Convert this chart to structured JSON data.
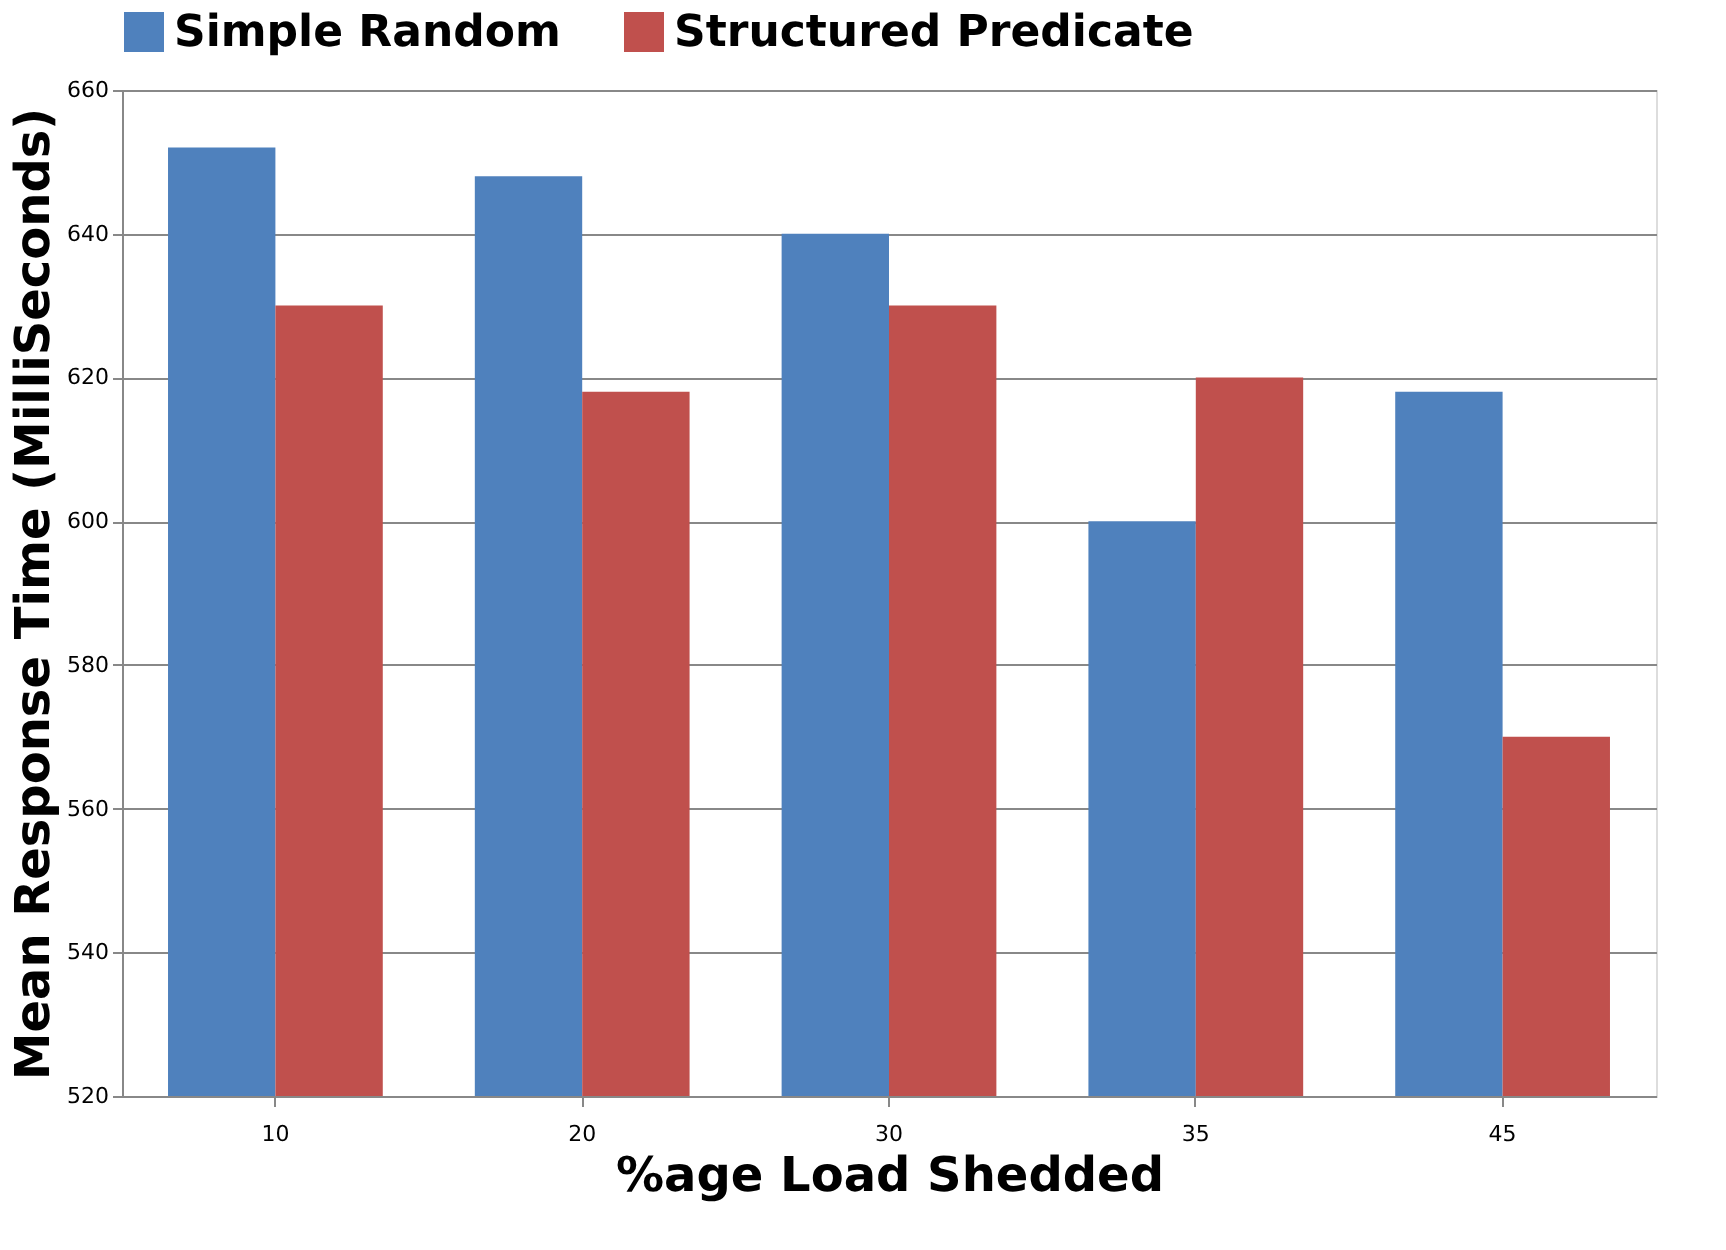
{
  "chart_data": {
    "type": "bar",
    "categories": [
      "10",
      "20",
      "30",
      "35",
      "45"
    ],
    "series": [
      {
        "name": "Simple Random",
        "color": "#4f81bd",
        "values": [
          652,
          648,
          640,
          600,
          618
        ]
      },
      {
        "name": "Structured Predicate",
        "color": "#c0504d",
        "values": [
          630,
          618,
          630,
          620,
          570
        ]
      }
    ],
    "xlabel": "%age Load Shedded",
    "ylabel": "Mean Response Time (MilliSeconds)",
    "ylim": [
      520,
      660
    ],
    "yticks": [
      520,
      540,
      560,
      580,
      600,
      620,
      640,
      660
    ],
    "grid": "y",
    "legend": "top"
  }
}
